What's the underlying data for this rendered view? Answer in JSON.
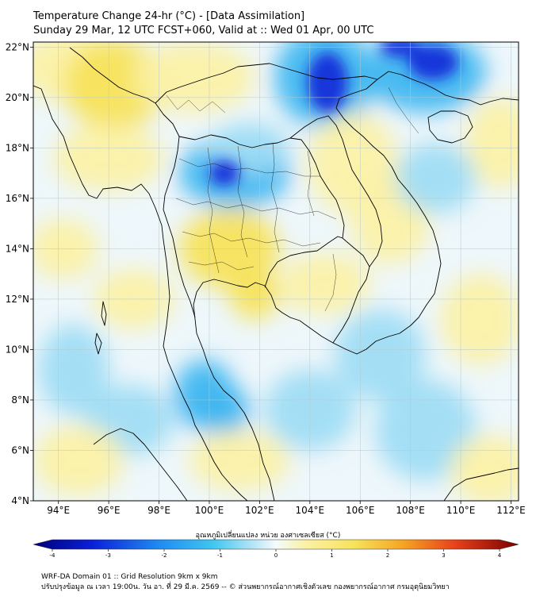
{
  "header": {
    "title": "Temperature Change 24-hr (°C) - [Data Assimilation]",
    "subtitle": "Sunday 29 Mar, 12 UTC FCST+060, Valid at :: Wed 01 Apr, 00 UTC"
  },
  "map": {
    "lat_ticks": [
      "22°N",
      "20°N",
      "18°N",
      "16°N",
      "14°N",
      "12°N",
      "10°N",
      "8°N",
      "6°N",
      "4°N"
    ],
    "lon_ticks": [
      "94°E",
      "96°E",
      "98°E",
      "100°E",
      "102°E",
      "104°E",
      "106°E",
      "108°E",
      "110°E",
      "112°E"
    ],
    "colors": {
      "cold_strong": "#0a1fd6",
      "cold_mid": "#3fb6f0",
      "cold_light": "#9fdcf4",
      "neutral": "#eef7fb",
      "warm_light": "#fbf1a6",
      "warm_mid": "#f7e35c",
      "border": "#000000",
      "grid": "#b9c7cc"
    }
  },
  "colorbar": {
    "label": "อุณหภูมิเปลี่ยนแปลง หน่วย องศาเซลเซียส (°C)",
    "ticks": [
      "-4",
      "-3",
      "-2",
      "-1",
      "0",
      "1",
      "2",
      "3",
      "4"
    ],
    "min": -4,
    "max": 4
  },
  "footer": {
    "line1": "WRF-DA Domain 01 :: Grid Resolution 9km x 9km",
    "line2": "ปรับปรุงข้อมูล ณ เวลา 19:00น. วัน อา. ที่ 29 มี.ค. 2569 -- © ส่วนพยากรณ์อากาศเชิงตัวเลข กองพยากรณ์อากาศ กรมอุตุนิยมวิทยา"
  }
}
